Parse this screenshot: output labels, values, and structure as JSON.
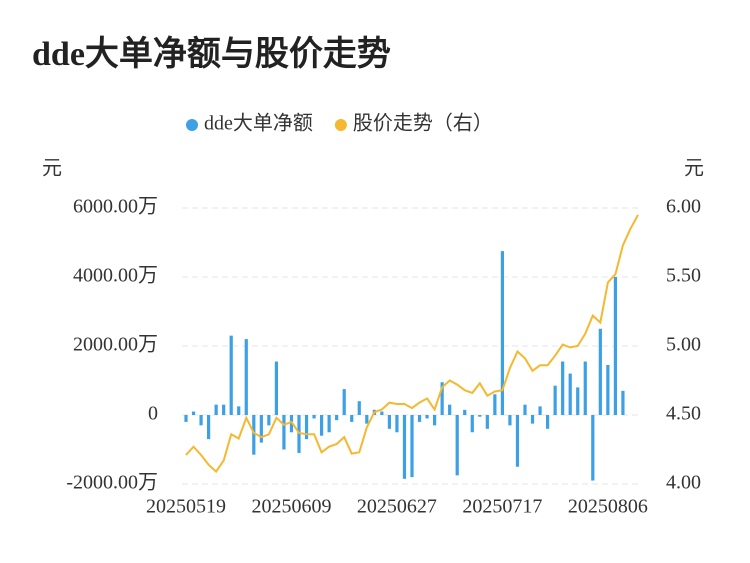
{
  "chart_data": {
    "type": "bar-line",
    "title": "dde大单净额与股价走势",
    "y_label": "元",
    "y2_label": "元",
    "categories": [
      "20250519",
      null,
      null,
      null,
      null,
      null,
      null,
      null,
      null,
      null,
      null,
      null,
      null,
      null,
      "20250609",
      null,
      null,
      null,
      null,
      null,
      null,
      null,
      null,
      null,
      null,
      null,
      null,
      null,
      "20250627",
      null,
      null,
      null,
      null,
      null,
      null,
      null,
      null,
      null,
      null,
      null,
      null,
      null,
      "20250717",
      null,
      null,
      null,
      null,
      null,
      null,
      null,
      null,
      null,
      null,
      null,
      null,
      null,
      "20250806",
      null,
      null,
      null,
      null
    ],
    "series": [
      {
        "name": "dde大单净额",
        "type": "bar",
        "color": "#3ba0e6",
        "axis": "y",
        "values": [
          -200,
          100,
          -300,
          -700,
          300,
          300,
          2300,
          250,
          2200,
          -1150,
          -800,
          -300,
          1550,
          -1000,
          -500,
          -1100,
          -700,
          -100,
          -600,
          -500,
          -150,
          750,
          -200,
          400,
          -250,
          150,
          100,
          -400,
          -500,
          -1850,
          -1800,
          -200,
          -100,
          -300,
          950,
          300,
          -1750,
          150,
          -500,
          -50,
          -400,
          600,
          4750,
          -300,
          -1500,
          300,
          -250,
          250,
          -400,
          850,
          1550,
          1200,
          800,
          1550,
          -1900,
          2500,
          1450,
          4000,
          700,
          0,
          0
        ]
      },
      {
        "name": "股价走势（右）",
        "type": "line",
        "color": "#f5b82e",
        "axis": "y2",
        "values": [
          4.21,
          4.27,
          4.21,
          4.14,
          4.09,
          4.17,
          4.36,
          4.33,
          4.48,
          4.37,
          4.34,
          4.36,
          4.48,
          4.43,
          4.45,
          4.37,
          4.36,
          4.36,
          4.23,
          4.27,
          4.29,
          4.34,
          4.22,
          4.23,
          4.41,
          4.52,
          4.54,
          4.59,
          4.58,
          4.58,
          4.55,
          4.59,
          4.62,
          4.54,
          4.7,
          4.75,
          4.72,
          4.68,
          4.66,
          4.73,
          4.64,
          4.67,
          4.68,
          4.84,
          4.96,
          4.91,
          4.82,
          4.86,
          4.86,
          4.93,
          5.01,
          4.99,
          5.0,
          5.09,
          5.22,
          5.17,
          5.46,
          5.52,
          5.73,
          5.85,
          5.95
        ]
      }
    ],
    "ylim": [
      -2000,
      6000
    ],
    "yticks": [
      {
        "value": -2000,
        "label": "-2000.00万"
      },
      0,
      {
        "value": 2000,
        "label": "2000.00万"
      },
      {
        "value": 4000,
        "label": "4000.00万"
      },
      {
        "value": 6000,
        "label": "6000.00万"
      }
    ],
    "y2lim": [
      4,
      6
    ],
    "y2ticks": [
      {
        "value": 4,
        "label": "4.00"
      },
      {
        "value": 4.5,
        "label": "4.50"
      },
      {
        "value": 5,
        "label": "5.00"
      },
      {
        "value": 5.5,
        "label": "5.50"
      },
      {
        "value": 6,
        "label": "6.00"
      }
    ],
    "grid": true
  }
}
